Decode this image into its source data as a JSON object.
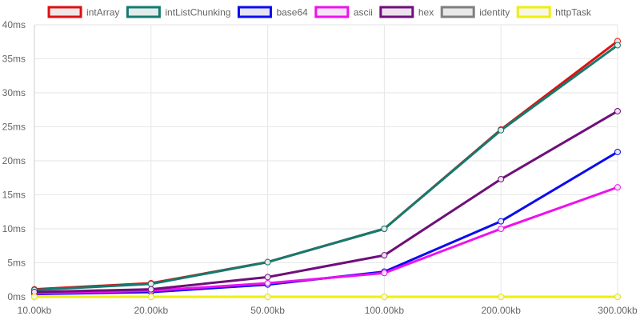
{
  "chart_data": {
    "type": "line",
    "categories": [
      "10.00kb",
      "20.00kb",
      "50.00kb",
      "100.00kb",
      "200.00kb",
      "300.00kb"
    ],
    "y_ticks": [
      "0ms",
      "5ms",
      "10ms",
      "15ms",
      "20ms",
      "25ms",
      "30ms",
      "35ms",
      "40ms"
    ],
    "ylim": [
      0,
      40
    ],
    "grid": true,
    "legend_position": "top",
    "series": [
      {
        "name": "intArray",
        "color": "#dd1111",
        "fill": "#f2e6e6",
        "values": [
          1.1,
          2.0,
          5.1,
          10.0,
          24.6,
          37.6
        ]
      },
      {
        "name": "intListChunking",
        "color": "#157a6e",
        "fill": "#e2ecea",
        "values": [
          1.0,
          1.9,
          5.1,
          10.0,
          24.5,
          37.0
        ]
      },
      {
        "name": "base64",
        "color": "#0c0cee",
        "fill": "#e4e4f7",
        "values": [
          0.4,
          0.7,
          1.8,
          3.7,
          11.1,
          21.3
        ]
      },
      {
        "name": "ascii",
        "color": "#ee11ee",
        "fill": "#f7e4f7",
        "values": [
          0.5,
          0.9,
          2.0,
          3.5,
          10.0,
          16.1
        ]
      },
      {
        "name": "hex",
        "color": "#6f0f7a",
        "fill": "#ece2ee",
        "values": [
          0.7,
          1.1,
          2.9,
          6.1,
          17.3,
          27.3
        ]
      },
      {
        "name": "identity",
        "color": "#7f7f7f",
        "fill": "#e8e8e8",
        "values": [
          0.0,
          0.0,
          0.0,
          0.0,
          0.0,
          0.0
        ]
      },
      {
        "name": "httpTask",
        "color": "#eeee11",
        "fill": "#f7f7e4",
        "values": [
          0.0,
          0.0,
          0.0,
          0.0,
          0.0,
          0.0
        ]
      }
    ]
  }
}
